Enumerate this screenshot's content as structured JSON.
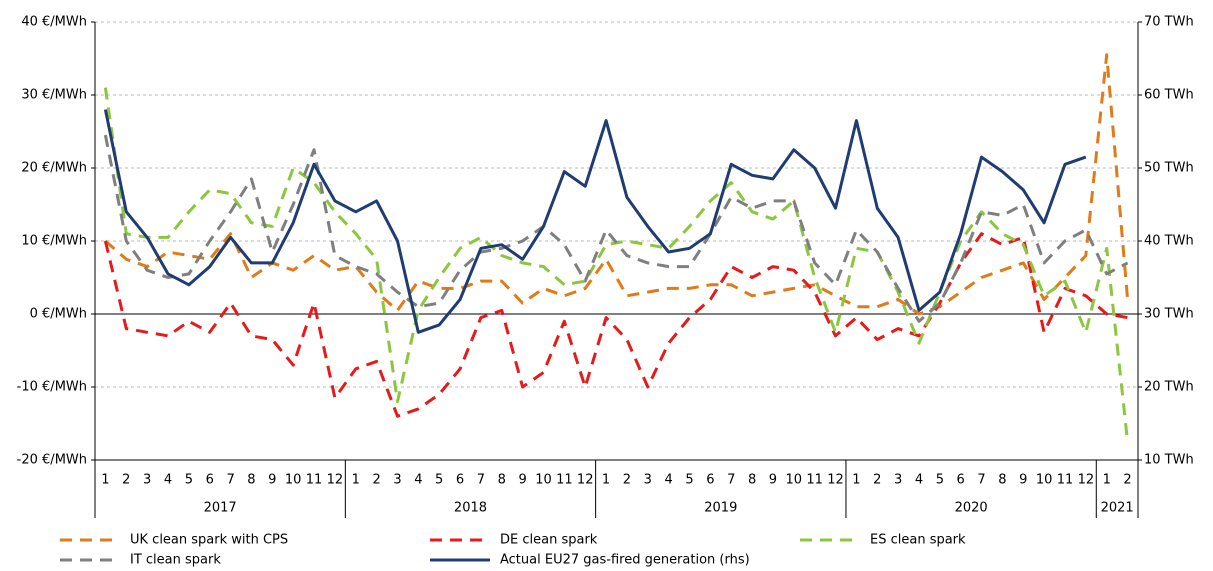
{
  "chart_data": {
    "type": "line",
    "categories": [
      "1",
      "2",
      "3",
      "4",
      "5",
      "6",
      "7",
      "8",
      "9",
      "10",
      "11",
      "12",
      "1",
      "2",
      "3",
      "4",
      "5",
      "6",
      "7",
      "8",
      "9",
      "10",
      "11",
      "12",
      "1",
      "2",
      "3",
      "4",
      "5",
      "6",
      "7",
      "8",
      "9",
      "10",
      "11",
      "12",
      "1",
      "2",
      "3",
      "4",
      "5",
      "6",
      "7",
      "8",
      "9",
      "10",
      "11",
      "12",
      "1",
      "2"
    ],
    "years": [
      "2017",
      "2018",
      "2019",
      "2020",
      "2021"
    ],
    "ylim": [
      -20,
      40
    ],
    "yticks": [
      {
        "value": -20,
        "label": "-20 €/MWh"
      },
      {
        "value": -10,
        "label": "-10 €/MWh"
      },
      {
        "value": 0,
        "label": "0 €/MWh"
      },
      {
        "value": 10,
        "label": "10 €/MWh"
      },
      {
        "value": 20,
        "label": "20 €/MWh"
      },
      {
        "value": 30,
        "label": "30 €/MWh"
      },
      {
        "value": 40,
        "label": "40 €/MWh"
      }
    ],
    "y2lim": [
      10,
      70
    ],
    "y2ticks": [
      {
        "value": 10,
        "label": "10 TWh"
      },
      {
        "value": 20,
        "label": "20 TWh"
      },
      {
        "value": 30,
        "label": "30 TWh"
      },
      {
        "value": 40,
        "label": "40 TWh"
      },
      {
        "value": 50,
        "label": "50 TWh"
      },
      {
        "value": 60,
        "label": "60 TWh"
      },
      {
        "value": 70,
        "label": "70 TWh"
      }
    ],
    "grid": true,
    "series": [
      {
        "name": "UK clean spark with CPS",
        "color": "#e07b1a",
        "dashed": true,
        "values": [
          10,
          7.5,
          6.5,
          8.5,
          8,
          7.5,
          11,
          5,
          7,
          6,
          8,
          6,
          6.5,
          3,
          0.5,
          4.5,
          3.5,
          3.5,
          4.5,
          4.5,
          1.5,
          3.5,
          2.5,
          3.5,
          7.5,
          2.5,
          3,
          3.5,
          3.5,
          4,
          4,
          2.5,
          3,
          3.5,
          4,
          2.5,
          1,
          1,
          2,
          0,
          1,
          3,
          5,
          6,
          7,
          2,
          5,
          8,
          35.5,
          2
        ]
      },
      {
        "name": "DE clean spark",
        "color": "#e8191b",
        "dashed": true,
        "values": [
          10,
          -2,
          -2.5,
          -3,
          -1,
          -2.5,
          1.5,
          -3,
          -3.5,
          -7,
          1.5,
          -11.5,
          -7.5,
          -6.5,
          -14,
          -13,
          -11,
          -7.5,
          -0.5,
          0.5,
          -10,
          -8,
          -1,
          -10,
          -0.5,
          -3.5,
          -10,
          -4,
          -0.5,
          2,
          6.5,
          5,
          6.5,
          6,
          3,
          -3,
          -0.5,
          -3.5,
          -2,
          -3,
          1.5,
          7,
          11,
          9.5,
          10.5,
          -2.5,
          3.5,
          2.5,
          0,
          -0.5
        ]
      },
      {
        "name": "ES clean spark",
        "color": "#8cc63e",
        "dashed": true,
        "values": [
          31,
          11,
          10.5,
          10.5,
          14,
          17,
          16.5,
          12.5,
          12,
          20,
          18,
          14,
          11,
          7.5,
          -12,
          0.5,
          5,
          9,
          10.5,
          8,
          7,
          6.5,
          4,
          4.5,
          9.5,
          10,
          9.5,
          9,
          12,
          15.5,
          18,
          14,
          13,
          15.5,
          5,
          -2.5,
          9,
          8.5,
          3,
          -4,
          3,
          10,
          14,
          11,
          9.5,
          2.5,
          4.5,
          -2.5,
          9,
          -17.5
        ]
      },
      {
        "name": "IT clean spark",
        "color": "#7f7f7f",
        "dashed": true,
        "values": [
          24.5,
          10,
          6,
          5,
          5.5,
          10,
          14,
          18.5,
          8.5,
          15,
          22.5,
          8,
          6.5,
          5.5,
          3,
          1,
          1.5,
          6,
          8.5,
          9,
          10,
          12,
          9.5,
          4.5,
          11.5,
          8,
          7,
          6.5,
          6.5,
          11,
          16,
          14.5,
          15.5,
          15.5,
          7,
          4,
          11.5,
          8.5,
          3.5,
          -1,
          1.5,
          7,
          14,
          13.5,
          15,
          7,
          10,
          11.5,
          5.5,
          7
        ]
      },
      {
        "name": "Actual EU27 gas-fired generation (rhs)",
        "color": "#1f3d73",
        "dashed": false,
        "axis": "y2",
        "values": [
          58,
          44,
          40.5,
          35.5,
          34,
          36.5,
          40.5,
          37,
          37,
          42.5,
          50.5,
          45.5,
          44,
          45.5,
          40,
          27.5,
          28.5,
          32,
          39,
          39.5,
          37.5,
          42,
          49.5,
          47.5,
          56.5,
          46,
          42,
          38.5,
          39,
          41,
          50.5,
          49,
          48.5,
          52.5,
          50,
          44.5,
          56.5,
          44.5,
          40.5,
          30.5,
          33,
          41,
          51.5,
          49.5,
          47,
          42.5,
          50.5,
          51.5,
          null,
          null
        ]
      }
    ]
  }
}
